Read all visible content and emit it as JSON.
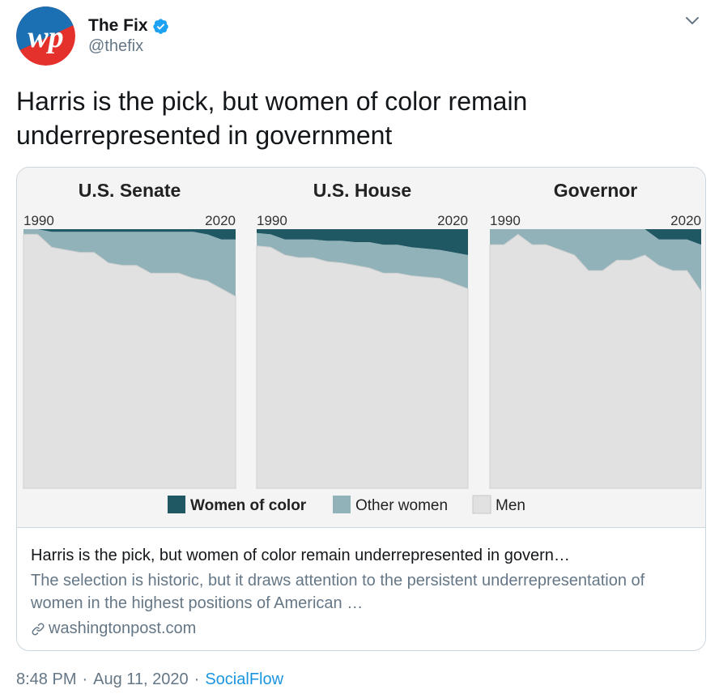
{
  "account": {
    "display_name": "The Fix",
    "handle": "@thefix",
    "avatar_text": "wp"
  },
  "tweet": {
    "text": "Harris is the pick, but women of color remain underrepresented in government"
  },
  "card": {
    "title": "Harris is the pick, but women of color remain underrepresented in govern…",
    "description": "The selection is historic, but it draws attention to the persistent underrepresentation of women in the highest positions of American …",
    "domain": "washingtonpost.com"
  },
  "meta": {
    "time": "8:48 PM",
    "date": "Aug 11, 2020",
    "source": "SocialFlow"
  },
  "colors": {
    "women_of_color": "#1f5762",
    "other_women": "#91b2b9",
    "men": "#e1e1e1",
    "link_blue": "#1b95e0",
    "verified_blue": "#1da1f2"
  },
  "chart_data": [
    {
      "type": "area",
      "title": "U.S. Senate",
      "xlim": [
        1990,
        2020
      ],
      "tick_labels": [
        "1990",
        "2020"
      ],
      "series_names": [
        "Women of color",
        "Other women",
        "Men"
      ],
      "x": [
        1990,
        1992,
        1994,
        1996,
        1998,
        2000,
        2002,
        2004,
        2006,
        2008,
        2010,
        2012,
        2014,
        2016,
        2018,
        2020
      ],
      "women_of_color": [
        0,
        0,
        1,
        1,
        1,
        1,
        1,
        1,
        1,
        1,
        1,
        1,
        1,
        2,
        4,
        4
      ],
      "other_women": [
        2,
        2,
        6,
        7,
        8,
        8,
        12,
        13,
        13,
        16,
        16,
        16,
        18,
        18,
        19,
        22
      ],
      "men": [
        98,
        98,
        93,
        92,
        91,
        91,
        87,
        86,
        86,
        83,
        83,
        83,
        81,
        80,
        77,
        74
      ]
    },
    {
      "type": "area",
      "title": "U.S. House",
      "xlim": [
        1990,
        2020
      ],
      "tick_labels": [
        "1990",
        "2020"
      ],
      "series_names": [
        "Women of color",
        "Other women",
        "Men"
      ],
      "x": [
        1990,
        1992,
        1994,
        1996,
        1998,
        2000,
        2002,
        2004,
        2006,
        2008,
        2010,
        2012,
        2014,
        2016,
        2018,
        2020
      ],
      "women_of_color": [
        1.5,
        2,
        4,
        4,
        4,
        4.5,
        4.5,
        5,
        5,
        6,
        6,
        7,
        7.5,
        8,
        9,
        10
      ],
      "other_women": [
        5,
        5,
        6,
        7,
        7,
        8,
        8.5,
        9,
        10,
        11,
        11,
        11,
        11,
        11,
        12,
        13
      ],
      "men": [
        93.5,
        93,
        90,
        89,
        89,
        87.5,
        87,
        86,
        85,
        83,
        83,
        82,
        81.5,
        81,
        79,
        77
      ]
    },
    {
      "type": "area",
      "title": "Governor",
      "xlim": [
        1990,
        2020
      ],
      "tick_labels": [
        "1990",
        "2020"
      ],
      "series_names": [
        "Women of color",
        "Other women",
        "Men"
      ],
      "x": [
        1990,
        1992,
        1994,
        1996,
        1998,
        2000,
        2002,
        2004,
        2006,
        2008,
        2010,
        2012,
        2014,
        2016,
        2018,
        2020
      ],
      "women_of_color": [
        0,
        0,
        0,
        0,
        0,
        0,
        0,
        0,
        0,
        0,
        0,
        0,
        4,
        4,
        4,
        6
      ],
      "other_women": [
        6,
        6,
        2,
        6,
        6,
        8,
        10,
        16,
        16,
        12,
        12,
        10,
        10,
        12,
        12,
        18
      ],
      "men": [
        94,
        94,
        98,
        94,
        94,
        92,
        90,
        84,
        84,
        88,
        88,
        90,
        86,
        84,
        84,
        76
      ]
    }
  ],
  "legend": [
    {
      "label": "Women of color",
      "key": "women_of_color"
    },
    {
      "label": "Other women",
      "key": "other_women"
    },
    {
      "label": "Men",
      "key": "men"
    }
  ]
}
